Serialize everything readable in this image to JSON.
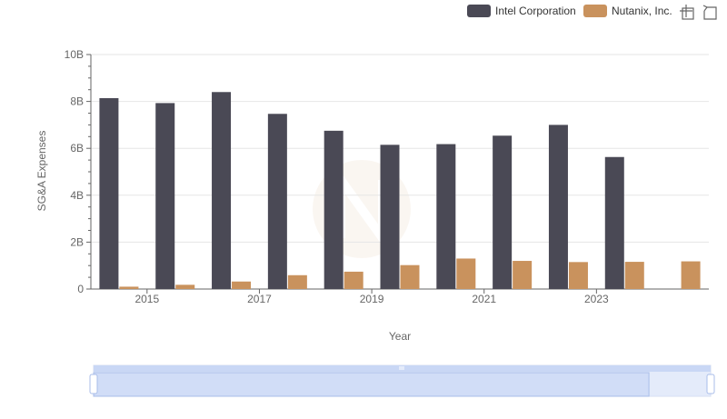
{
  "colors": {
    "intel": "#4a4955",
    "nutanix": "#c9925d",
    "grid": "#e6e6e6",
    "axis": "#666666",
    "zoom_fill": "#dbe5f9",
    "zoom_border": "#a9bde9",
    "zoom_handle": "#ffffff"
  },
  "toolbox": {
    "zoom_icon": "zoom-icon",
    "restore_icon": "restore-icon"
  },
  "chart_data": {
    "type": "bar",
    "xlabel": "Year",
    "ylabel": "SG&A Expenses",
    "ylim": [
      0,
      10000000000
    ],
    "yticks": [
      "0",
      "2B",
      "4B",
      "6B",
      "8B",
      "10B"
    ],
    "xticks": [
      "2015",
      "2017",
      "2019",
      "2021",
      "2023"
    ],
    "categories": [
      2014,
      2015,
      2016,
      2017,
      2018,
      2019,
      2020,
      2021,
      2022,
      2023,
      2024
    ],
    "legend_position": "top-right",
    "grid": true,
    "series": [
      {
        "name": "Intel Corporation",
        "color": "#4a4955",
        "values": [
          8140000000,
          7930000000,
          8400000000,
          7470000000,
          6750000000,
          6150000000,
          6180000000,
          6540000000,
          7000000000,
          5630000000,
          null
        ]
      },
      {
        "name": "Nutanix, Inc.",
        "color": "#c9925d",
        "values": [
          100000000,
          180000000,
          320000000,
          590000000,
          740000000,
          1020000000,
          1300000000,
          1200000000,
          1150000000,
          1160000000,
          1180000000
        ]
      }
    ]
  }
}
